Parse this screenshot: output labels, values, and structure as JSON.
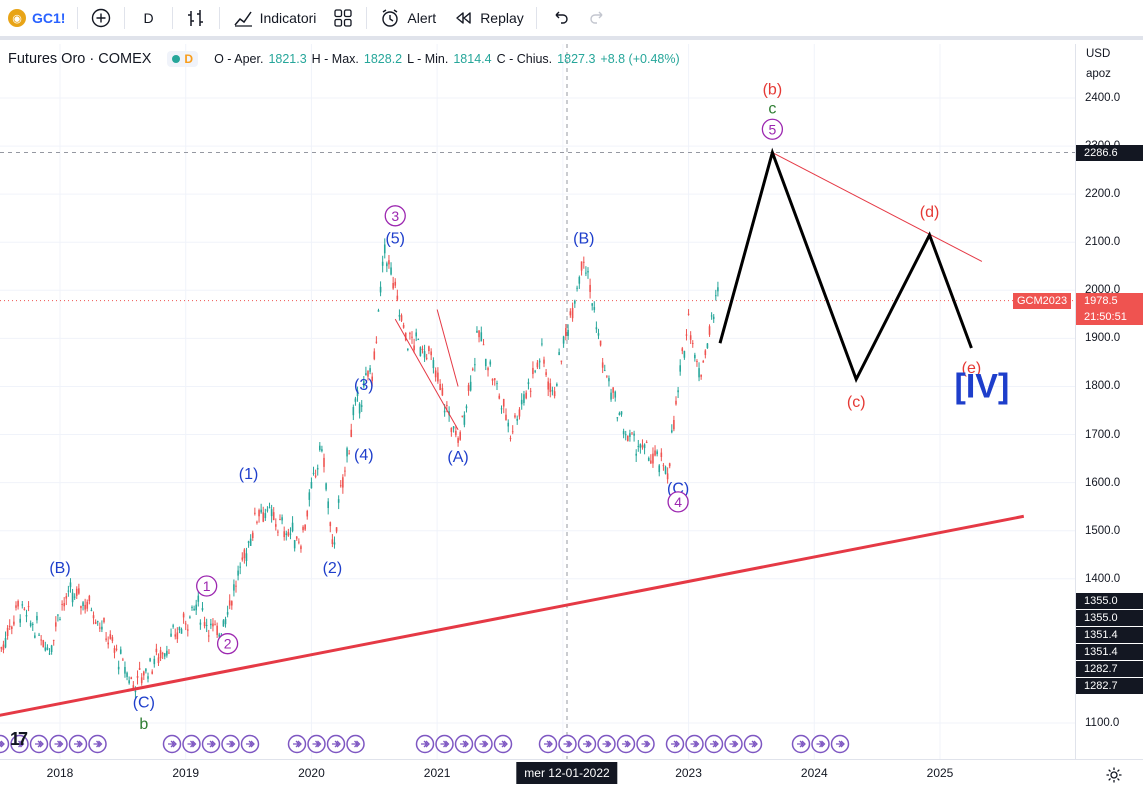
{
  "toolbar": {
    "symbol": "GC1!",
    "interval": "D",
    "indicators_label": "Indicatori",
    "alert_label": "Alert",
    "replay_label": "Replay"
  },
  "legend": {
    "name": "Futures Oro · COMEX",
    "interval_letter": "D",
    "open_label": "O - Aper.",
    "open": "1821.3",
    "high_label": "H - Max.",
    "high": "1828.2",
    "low_label": "L - Min.",
    "low": "1814.4",
    "close_label": "C - Chius.",
    "close": "1827.3",
    "change": "+8.8 (+0.48%)"
  },
  "price_axis": {
    "currency": "USD",
    "scale_label": "apoz",
    "ticks": [
      "2400.0",
      "2300.0",
      "2200.0",
      "2100.0",
      "2000.0",
      "1900.0",
      "1800.0",
      "1700.0",
      "1600.0",
      "1500.0",
      "1400.0",
      "1100.0"
    ],
    "crosshair_price": "2286.6",
    "symbol_tag": "GCM2023",
    "last_price": "1978.5",
    "countdown": "21:50:51",
    "level_tags": [
      "1355.0",
      "1355.0",
      "1351.4",
      "1351.4",
      "1282.7",
      "1282.7"
    ]
  },
  "time_axis": {
    "ticks": [
      "2018",
      "2019",
      "2020",
      "2021",
      "2023",
      "2024",
      "2025"
    ],
    "crosshair_date": "mer 12-01-2022"
  },
  "colors": {
    "up": "#26a69a",
    "down": "#ef5350",
    "wave_blue": "#1e3ecb",
    "wave_purple": "#9c27b0",
    "wave_red": "#e53935",
    "wave_green": "#2e7d32",
    "trendline": "#e53945",
    "projection": "#000000"
  },
  "chart_data": {
    "type": "line",
    "title": "",
    "xlabel": "",
    "ylabel": "",
    "xlim": [
      "2017-07",
      "2025-09"
    ],
    "ylim": [
      1050,
      2500
    ],
    "series": [
      {
        "values": [
          {
            "x": "2017-07",
            "y": 1240
          },
          {
            "x": "2017-09",
            "y": 1340
          },
          {
            "x": "2017-11",
            "y": 1290
          },
          {
            "x": "2017-12",
            "y": 1255
          },
          {
            "x": "2018-01",
            "y": 1340
          },
          {
            "x": "2018-02",
            "y": 1365
          },
          {
            "x": "2018-04",
            "y": 1345
          },
          {
            "x": "2018-06",
            "y": 1260
          },
          {
            "x": "2018-08",
            "y": 1180
          },
          {
            "x": "2018-10",
            "y": 1230
          },
          {
            "x": "2018-12",
            "y": 1280
          },
          {
            "x": "2019-02",
            "y": 1345
          },
          {
            "x": "2019-04",
            "y": 1280
          },
          {
            "x": "2019-06",
            "y": 1400
          },
          {
            "x": "2019-08",
            "y": 1550
          },
          {
            "x": "2019-10",
            "y": 1510
          },
          {
            "x": "2019-12",
            "y": 1480
          },
          {
            "x": "2020-02",
            "y": 1680
          },
          {
            "x": "2020-03",
            "y": 1460
          },
          {
            "x": "2020-05",
            "y": 1740
          },
          {
            "x": "2020-07",
            "y": 1850
          },
          {
            "x": "2020-08",
            "y": 2089
          },
          {
            "x": "2020-10",
            "y": 1900
          },
          {
            "x": "2020-12",
            "y": 1880
          },
          {
            "x": "2021-03",
            "y": 1680
          },
          {
            "x": "2021-05",
            "y": 1910
          },
          {
            "x": "2021-08",
            "y": 1710
          },
          {
            "x": "2021-11",
            "y": 1870
          },
          {
            "x": "2021-12",
            "y": 1780
          },
          {
            "x": "2022-03",
            "y": 2078
          },
          {
            "x": "2022-05",
            "y": 1830
          },
          {
            "x": "2022-07",
            "y": 1700
          },
          {
            "x": "2022-09",
            "y": 1660
          },
          {
            "x": "2022-11",
            "y": 1625
          },
          {
            "x": "2023-01",
            "y": 1950
          },
          {
            "x": "2023-02",
            "y": 1820
          },
          {
            "x": "2023-04",
            "y": 2010
          }
        ]
      },
      {
        "values": [
          {
            "x": "2023-04",
            "y": 1890
          },
          {
            "x": "2023-09",
            "y": 2286.6
          },
          {
            "x": "2024-05",
            "y": 1815
          },
          {
            "x": "2024-12",
            "y": 2115
          },
          {
            "x": "2025-04",
            "y": 1880
          }
        ]
      }
    ],
    "trendlines": [
      {
        "from": {
          "x": "2017-07",
          "y": 1115
        },
        "to": {
          "x": "2025-09",
          "y": 1530
        }
      },
      {
        "from": {
          "x": "2023-09",
          "y": 2286.6
        },
        "to": {
          "x": "2025-05",
          "y": 2060
        }
      },
      {
        "from": {
          "x": "2020-09",
          "y": 1940
        },
        "to": {
          "x": "2021-03",
          "y": 1710
        }
      },
      {
        "from": {
          "x": "2021-01",
          "y": 1960
        },
        "to": {
          "x": "2021-03",
          "y": 1800
        }
      }
    ],
    "annotations": [
      {
        "text": "(B)",
        "x": "2018-01",
        "y": 1425,
        "color": "blue"
      },
      {
        "text": "(C)",
        "x": "2018-09",
        "y": 1145,
        "color": "blue"
      },
      {
        "text": "b",
        "x": "2018-09",
        "y": 1100,
        "color": "green"
      },
      {
        "text": "1",
        "x": "2019-03",
        "y": 1385,
        "color": "purple",
        "circled": true
      },
      {
        "text": "2",
        "x": "2019-05",
        "y": 1265,
        "color": "purple",
        "circled": true
      },
      {
        "text": "(1)",
        "x": "2019-07",
        "y": 1620,
        "color": "blue"
      },
      {
        "text": "(2)",
        "x": "2020-03",
        "y": 1425,
        "color": "blue"
      },
      {
        "text": "(3)",
        "x": "2020-06",
        "y": 1805,
        "color": "blue"
      },
      {
        "text": "(4)",
        "x": "2020-06",
        "y": 1660,
        "color": "blue"
      },
      {
        "text": "3",
        "x": "2020-09",
        "y": 2155,
        "color": "purple",
        "circled": true
      },
      {
        "text": "(5)",
        "x": "2020-09",
        "y": 2110,
        "color": "blue"
      },
      {
        "text": "(A)",
        "x": "2021-03",
        "y": 1655,
        "color": "blue"
      },
      {
        "text": "(B)",
        "x": "2022-03",
        "y": 2110,
        "color": "blue"
      },
      {
        "text": "(C)",
        "x": "2022-12",
        "y": 1590,
        "color": "blue"
      },
      {
        "text": "4",
        "x": "2022-12",
        "y": 1560,
        "color": "purple",
        "circled": true
      },
      {
        "text": "(b)",
        "x": "2023-09",
        "y": 2420,
        "color": "red"
      },
      {
        "text": "c",
        "x": "2023-09",
        "y": 2380,
        "color": "green"
      },
      {
        "text": "5",
        "x": "2023-09",
        "y": 2335,
        "color": "purple",
        "circled": true
      },
      {
        "text": "(c)",
        "x": "2024-05",
        "y": 1770,
        "color": "red"
      },
      {
        "text": "(d)",
        "x": "2024-12",
        "y": 2165,
        "color": "red"
      },
      {
        "text": "(e)",
        "x": "2025-04",
        "y": 1840,
        "color": "red"
      },
      {
        "text": "[IV]",
        "x": "2025-05",
        "y": 1790,
        "color": "blue"
      }
    ]
  }
}
